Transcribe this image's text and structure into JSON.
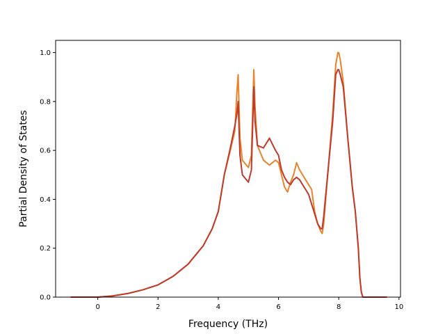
{
  "chart_data": {
    "type": "line",
    "title": "",
    "xlabel": "Frequency (THz)",
    "ylabel": "Partial Density of States",
    "xlim": [
      -1.4,
      10.05
    ],
    "ylim": [
      0.0,
      1.05
    ],
    "xticks": [
      "0",
      "2",
      "4",
      "6",
      "8",
      "10"
    ],
    "yticks": [
      "0.0",
      "0.2",
      "0.4",
      "0.6",
      "0.8",
      "1.0"
    ],
    "grid": false,
    "series": [
      {
        "color": "#e8832a",
        "x": [
          -0.9,
          0.0,
          0.5,
          1.0,
          1.5,
          2.0,
          2.5,
          3.0,
          3.5,
          3.8,
          4.0,
          4.2,
          4.4,
          4.55,
          4.62,
          4.66,
          4.72,
          4.8,
          5.0,
          5.1,
          5.18,
          5.22,
          5.3,
          5.5,
          5.7,
          5.9,
          6.0,
          6.1,
          6.2,
          6.3,
          6.4,
          6.5,
          6.6,
          6.7,
          6.8,
          7.0,
          7.1,
          7.2,
          7.3,
          7.4,
          7.45,
          7.5,
          7.6,
          7.8,
          7.9,
          7.97,
          8.0,
          8.05,
          8.15,
          8.3,
          8.45,
          8.55,
          8.65,
          8.7,
          8.75,
          8.8,
          9.0,
          9.6
        ],
        "y": [
          0.0,
          0.0,
          0.005,
          0.015,
          0.03,
          0.05,
          0.085,
          0.135,
          0.21,
          0.28,
          0.35,
          0.5,
          0.6,
          0.68,
          0.84,
          0.91,
          0.65,
          0.56,
          0.53,
          0.58,
          0.93,
          0.78,
          0.62,
          0.56,
          0.54,
          0.56,
          0.55,
          0.5,
          0.45,
          0.43,
          0.47,
          0.5,
          0.55,
          0.52,
          0.5,
          0.46,
          0.44,
          0.35,
          0.3,
          0.27,
          0.26,
          0.3,
          0.45,
          0.75,
          0.95,
          1.0,
          1.0,
          0.97,
          0.88,
          0.65,
          0.45,
          0.35,
          0.2,
          0.08,
          0.02,
          0.0,
          0.0,
          0.0
        ]
      },
      {
        "color": "#c0392b",
        "x": [
          -0.9,
          0.0,
          0.5,
          1.0,
          1.5,
          2.0,
          2.5,
          3.0,
          3.5,
          3.8,
          4.0,
          4.2,
          4.4,
          4.55,
          4.62,
          4.66,
          4.72,
          4.8,
          5.0,
          5.1,
          5.18,
          5.22,
          5.3,
          5.5,
          5.7,
          5.9,
          6.0,
          6.1,
          6.2,
          6.3,
          6.4,
          6.5,
          6.6,
          6.7,
          6.8,
          7.0,
          7.1,
          7.2,
          7.3,
          7.4,
          7.45,
          7.5,
          7.6,
          7.8,
          7.9,
          7.97,
          8.0,
          8.05,
          8.15,
          8.3,
          8.45,
          8.55,
          8.65,
          8.7,
          8.75,
          8.8,
          9.0,
          9.6
        ],
        "y": [
          0.0,
          0.0,
          0.005,
          0.015,
          0.03,
          0.05,
          0.085,
          0.135,
          0.21,
          0.28,
          0.35,
          0.5,
          0.61,
          0.7,
          0.75,
          0.8,
          0.58,
          0.5,
          0.47,
          0.52,
          0.86,
          0.72,
          0.62,
          0.61,
          0.65,
          0.6,
          0.58,
          0.52,
          0.49,
          0.47,
          0.46,
          0.48,
          0.49,
          0.48,
          0.46,
          0.42,
          0.38,
          0.34,
          0.3,
          0.28,
          0.28,
          0.33,
          0.46,
          0.72,
          0.91,
          0.93,
          0.93,
          0.91,
          0.86,
          0.65,
          0.45,
          0.35,
          0.2,
          0.08,
          0.02,
          0.0,
          0.0,
          0.0
        ]
      }
    ]
  }
}
